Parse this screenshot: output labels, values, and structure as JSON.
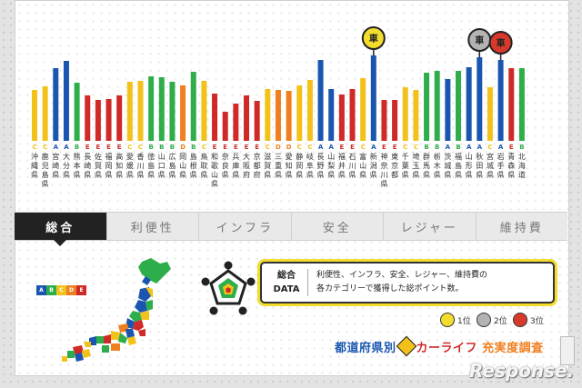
{
  "tabs": [
    {
      "label": "総合",
      "active": true
    },
    {
      "label": "利便性",
      "active": false
    },
    {
      "label": "インフラ",
      "active": false
    },
    {
      "label": "安全",
      "active": false
    },
    {
      "label": "レジャー",
      "active": false
    },
    {
      "label": "維持費",
      "active": false
    }
  ],
  "info": {
    "label_line1": "総合",
    "label_line2": "DATA",
    "desc_line1": "利便性、インフラ、安全、レジャー、維持費の",
    "desc_line2": "各カテゴリーで獲得した総ポイント数。"
  },
  "ranks": [
    {
      "label": "1位",
      "color": "#f2dc2e"
    },
    {
      "label": "2位",
      "color": "#b3b3b3"
    },
    {
      "label": "3位",
      "color": "#d73a2a"
    }
  ],
  "grade_legend": [
    "A",
    "B",
    "C",
    "D",
    "E"
  ],
  "grade_colors": {
    "A": "#1a56b0",
    "B": "#2eae4a",
    "C": "#f2c21b",
    "D": "#ef7f1f",
    "E": "#cf2a27"
  },
  "title": {
    "part1": "都道府県別",
    "part2": "カーライフ",
    "part3": "充実度調査"
  },
  "watermark": "Response.",
  "chart_data": {
    "type": "bar",
    "categories": [
      "沖縄県",
      "鹿児島県",
      "宮崎県",
      "大分県",
      "熊本県",
      "長崎県",
      "佐賀県",
      "福岡県",
      "高知県",
      "愛媛県",
      "香川県",
      "徳島県",
      "山口県",
      "広島県",
      "岡山県",
      "島根県",
      "鳥取県",
      "和歌山県",
      "奈良県",
      "兵庫県",
      "大阪府",
      "京都府",
      "滋賀県",
      "三重県",
      "愛知県",
      "静岡県",
      "岐阜県",
      "長野県",
      "山梨県",
      "福井県",
      "石川県",
      "富山県",
      "新潟県",
      "神奈川県",
      "東京都",
      "千葉県",
      "埼玉県",
      "群馬県",
      "栃木県",
      "茨城県",
      "福島県",
      "山形県",
      "秋田県",
      "宮城県",
      "岩手県",
      "青森県",
      "北海道"
    ],
    "grades": [
      "C",
      "C",
      "A",
      "A",
      "B",
      "E",
      "E",
      "E",
      "E",
      "C",
      "C",
      "B",
      "B",
      "B",
      "D",
      "B",
      "C",
      "E",
      "E",
      "E",
      "E",
      "E",
      "C",
      "D",
      "D",
      "C",
      "C",
      "A",
      "A",
      "E",
      "E",
      "C",
      "A",
      "E",
      "E",
      "C",
      "C",
      "B",
      "B",
      "A",
      "B",
      "A",
      "A",
      "C",
      "A",
      "E",
      "B"
    ],
    "values": [
      56,
      60,
      80,
      88,
      64,
      50,
      45,
      46,
      50,
      65,
      66,
      71,
      70,
      65,
      61,
      76,
      66,
      52,
      32,
      41,
      50,
      44,
      57,
      56,
      55,
      61,
      67,
      89,
      57,
      51,
      57,
      69,
      94,
      45,
      45,
      59,
      56,
      75,
      77,
      68,
      77,
      81,
      92,
      59,
      89,
      80,
      80
    ],
    "ranked": {
      "1": 32,
      "2": 42,
      "3": 44
    },
    "rank_icon_label": "車"
  }
}
